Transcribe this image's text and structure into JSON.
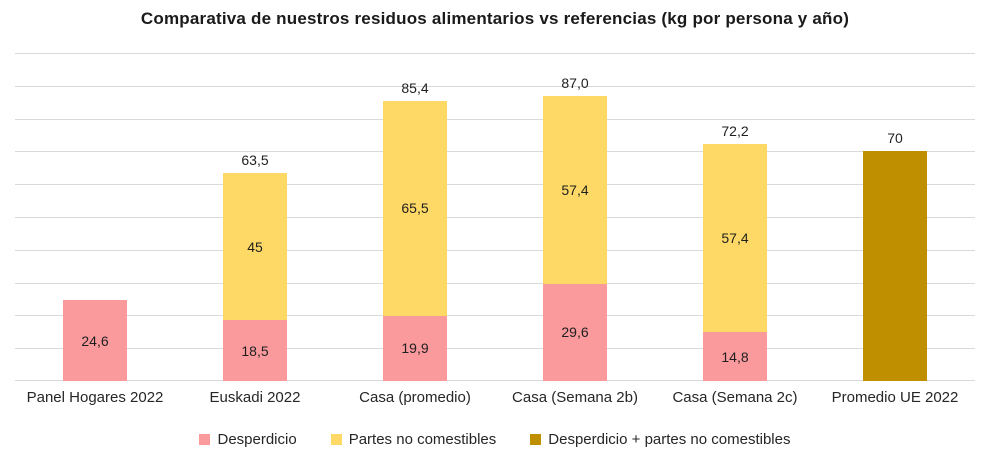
{
  "chart_data": {
    "type": "bar",
    "stacked": true,
    "title": "Comparativa de nuestros residuos alimentarios vs referencias (kg por persona y año)",
    "categories": [
      "Panel Hogares 2022",
      "Euskadi 2022",
      "Casa (promedio)",
      "Casa (Semana 2b)",
      "Casa (Semana 2c)",
      "Promedio UE 2022"
    ],
    "series": [
      {
        "name": "Desperdicio",
        "color": "#FA9A9D",
        "values": [
          24.6,
          18.5,
          19.9,
          29.6,
          14.8,
          null
        ],
        "labels": [
          "24,6",
          "18,5",
          "19,9",
          "29,6",
          "14,8",
          null
        ]
      },
      {
        "name": "Partes no comestibles",
        "color": "#FFD966",
        "values": [
          null,
          45,
          65.5,
          57.4,
          57.4,
          null
        ],
        "labels": [
          null,
          "45",
          "65,5",
          "57,4",
          "57,4",
          null
        ]
      },
      {
        "name": "Desperdicio + partes no comestibles",
        "color": "#BF8F00",
        "values": [
          null,
          null,
          null,
          null,
          null,
          70
        ],
        "labels": [
          null,
          null,
          null,
          null,
          null,
          null
        ]
      }
    ],
    "total_labels": [
      null,
      "63,5",
      "85,4",
      "87,0",
      "72,2",
      "70"
    ],
    "ylim": [
      0,
      100
    ],
    "gridline_step": 10,
    "grid": true,
    "y_axis_labels_visible": false,
    "legend_position": "bottom",
    "gridline_color": "#D9D9D9",
    "background_color": "#FFFFFF"
  }
}
